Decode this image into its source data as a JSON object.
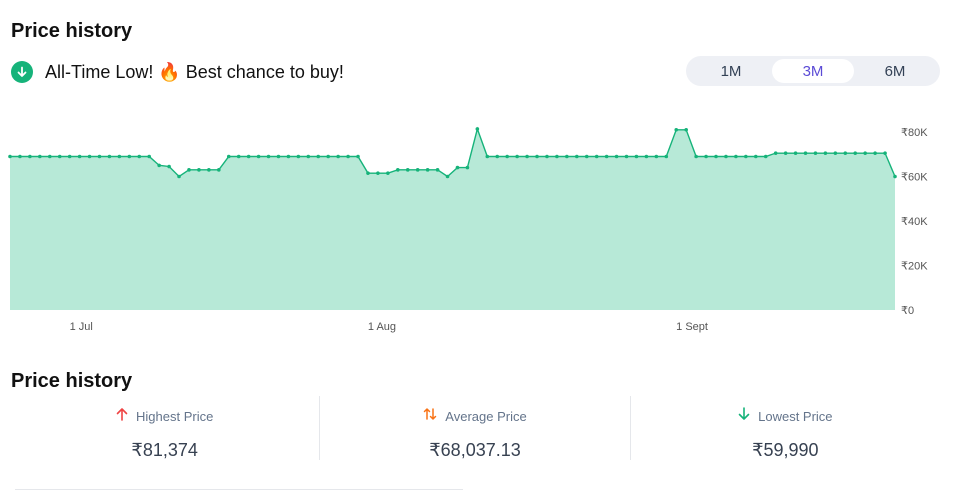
{
  "header": {
    "title": "Price history"
  },
  "alert": {
    "icon": "arrow-down-circle-icon",
    "text": "All-Time Low! 🔥 Best chance to buy!"
  },
  "range_toggle": {
    "options": [
      "1M",
      "3M",
      "6M"
    ],
    "selected": "3M"
  },
  "chart_data": {
    "type": "area",
    "currency": "₹",
    "x_tick_labels": [
      "1 Jul",
      "1 Aug",
      "1 Sept"
    ],
    "y_tick_labels": [
      "₹80K",
      "₹60K",
      "₹40K",
      "₹20K",
      "₹0"
    ],
    "ylim": [
      0,
      80000
    ],
    "y_ticks": [
      80000,
      60000,
      40000,
      20000,
      0
    ],
    "grid": false,
    "legend": "none",
    "colors": {
      "line": "#16b37a",
      "fill": "#b7e9d7"
    },
    "values": [
      68990,
      68990,
      68990,
      68990,
      68990,
      68990,
      68990,
      68990,
      68990,
      68990,
      68990,
      68990,
      68990,
      68990,
      68990,
      65000,
      64500,
      60000,
      63000,
      63000,
      63000,
      63000,
      68990,
      68990,
      68990,
      68990,
      68990,
      68990,
      68990,
      68990,
      68990,
      68990,
      68990,
      68990,
      68990,
      68990,
      61500,
      61500,
      61500,
      63000,
      63000,
      63000,
      63000,
      63000,
      60000,
      64000,
      64000,
      81374,
      68990,
      68990,
      68990,
      68990,
      68990,
      68990,
      68990,
      68990,
      68990,
      68990,
      68990,
      68990,
      68990,
      68990,
      68990,
      68990,
      68990,
      68990,
      68990,
      81000,
      81000,
      68990,
      68990,
      68990,
      68990,
      68990,
      68990,
      68990,
      68990,
      70500,
      70500,
      70500,
      70500,
      70500,
      70500,
      70500,
      70500,
      70500,
      70500,
      70500,
      70500,
      59990
    ]
  },
  "summary": {
    "title": "Price history",
    "highest": {
      "icon": "arrow-up-icon",
      "label": "Highest Price",
      "value": "₹81,374",
      "color": "#ef4444"
    },
    "average": {
      "icon": "arrows-up-down-icon",
      "label": "Average Price",
      "value": "₹68,037.13",
      "color": "#f97316"
    },
    "lowest": {
      "icon": "arrow-down-icon",
      "label": "Lowest Price",
      "value": "₹59,990",
      "color": "#16b37a"
    }
  }
}
